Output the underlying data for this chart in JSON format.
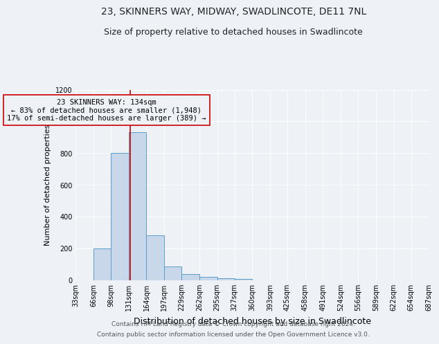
{
  "title1": "23, SKINNERS WAY, MIDWAY, SWADLINCOTE, DE11 7NL",
  "title2": "Size of property relative to detached houses in Swadlincote",
  "xlabel": "Distribution of detached houses by size in Swadlincote",
  "ylabel": "Number of detached properties",
  "footnote1": "Contains HM Land Registry data © Crown copyright and database right 2024.",
  "footnote2": "Contains public sector information licensed under the Open Government Licence v3.0.",
  "bin_edges": [
    33,
    66,
    98,
    131,
    164,
    197,
    229,
    262,
    295,
    327,
    360,
    393,
    425,
    458,
    491,
    524,
    556,
    589,
    622,
    654,
    687
  ],
  "bar_heights": [
    0,
    198,
    800,
    930,
    280,
    85,
    35,
    18,
    10,
    8,
    0,
    0,
    0,
    0,
    0,
    0,
    0,
    0,
    0,
    0
  ],
  "bar_color": "#c8d8ea",
  "bar_edgecolor": "#5a9ec9",
  "property_size": 134,
  "red_line_color": "#cc0000",
  "annotation_line1": "23 SKINNERS WAY: 134sqm",
  "annotation_line2": "← 83% of detached houses are smaller (1,948)",
  "annotation_line3": "17% of semi-detached houses are larger (389) →",
  "annotation_box_color": "#cc0000",
  "ylim": [
    0,
    1200
  ],
  "yticks": [
    0,
    200,
    400,
    600,
    800,
    1000,
    1200
  ],
  "bg_color": "#eef2f7",
  "grid_color": "#ffffff",
  "title1_fontsize": 10,
  "title2_fontsize": 9,
  "xlabel_fontsize": 9,
  "ylabel_fontsize": 8,
  "tick_fontsize": 7,
  "footnote_fontsize": 6.5,
  "annotation_fontsize": 7.5
}
